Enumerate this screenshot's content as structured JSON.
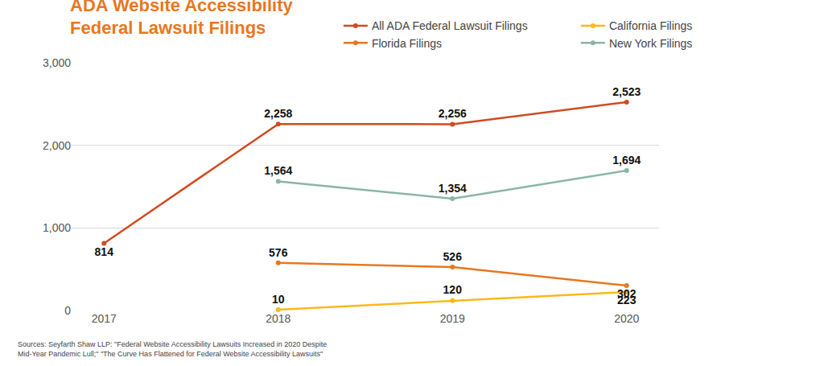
{
  "chart_data": {
    "type": "line",
    "title": "ADA Website Accessibility\nFederal Lawsuit Filings",
    "categories": [
      "2017",
      "2018",
      "2019",
      "2020"
    ],
    "series": [
      {
        "name": "All ADA Federal Lawsuit Filings",
        "color": "#d14b1f",
        "values": [
          814,
          2258,
          2256,
          2523
        ],
        "value_labels": [
          "814",
          "2,258",
          "2,256",
          "2,523"
        ]
      },
      {
        "name": "California Filings",
        "color": "#fbb81b",
        "values": [
          null,
          10,
          120,
          223
        ],
        "value_labels": [
          null,
          "10",
          "120",
          "223"
        ]
      },
      {
        "name": "Florida Filings",
        "color": "#e8771e",
        "values": [
          null,
          576,
          526,
          302
        ],
        "value_labels": [
          null,
          "576",
          "526",
          "302"
        ]
      },
      {
        "name": "New York Filings",
        "color": "#8ab6a7",
        "values": [
          null,
          1564,
          1354,
          1694
        ],
        "value_labels": [
          null,
          "1,564",
          "1,354",
          "1,694"
        ]
      }
    ],
    "ylim": [
      0,
      3000
    ],
    "yticks": [
      0,
      {
        "value": 1000,
        "label": "1,000"
      },
      {
        "value": 2000,
        "label": "2,000"
      },
      {
        "value": 3000,
        "label": "3,000"
      }
    ],
    "grid": true,
    "legend": "top right",
    "data_labels": true,
    "marker": "circle",
    "annotations": [
      "Sources: Seyfarth Shaw LLP: \"Federal Website Accessibility Lawsuits Increased in 2020 Despite\nMid-Year Pandemic Lull;\" \"The Curve Has Flattened for Federal Website Accessibility Lawsuits\""
    ]
  }
}
